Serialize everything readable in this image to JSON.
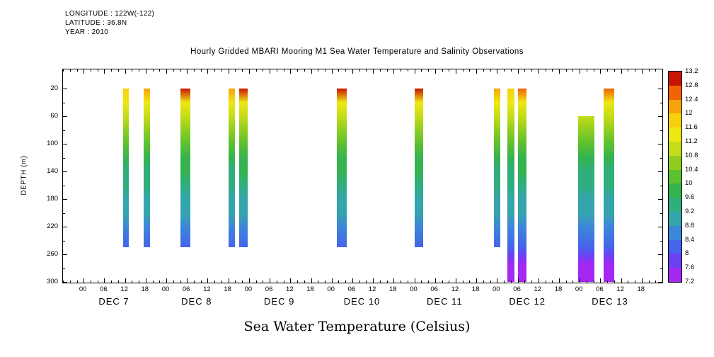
{
  "chart_data": {
    "type": "heatmap",
    "title": "Hourly Gridded MBARI Mooring M1 Sea Water Temperature and Salinity Observations",
    "xlabel_bottom": "Sea Water Temperature (Celsius)",
    "ylabel": "DEPTH (m)",
    "info": [
      "LONGITUDE : 122W(-122)",
      "LATITUDE : 36.8N",
      "YEAR : 2010"
    ],
    "x_range_hours": [
      -6,
      168
    ],
    "depth_range": [
      -8,
      301
    ],
    "hour_tick_step": 6,
    "minor_tick_step": 2,
    "y_ticks": [
      20,
      60,
      100,
      140,
      180,
      220,
      260,
      300
    ],
    "y_minor_step": 20,
    "day_labels": [
      "DEC 7",
      "DEC 8",
      "DEC 9",
      "DEC 10",
      "DEC 11",
      "DEC 12",
      "DEC 13"
    ],
    "colorbar": {
      "min": 7.2,
      "max": 13.2,
      "step": 0.4,
      "labels_top_to_bottom": [
        "13.2",
        "12.8",
        "12.4",
        "12",
        "11.6",
        "11.2",
        "10.8",
        "10.4",
        "10",
        "9.6",
        "9.2",
        "8.8",
        "8.4",
        "8",
        "7.6",
        "7.2"
      ],
      "colors_bottom_to_top": [
        "#a428f2",
        "#6d40f4",
        "#4663ea",
        "#3d87d9",
        "#35a5ad",
        "#2fae7e",
        "#35b34f",
        "#5cc02f",
        "#8fcd20",
        "#c4dd18",
        "#eee712",
        "#f7d00c",
        "#f8a309",
        "#f26306",
        "#c81502"
      ]
    },
    "bars": [
      {
        "t0": 11.5,
        "t1": 13.2,
        "profile": [
          [
            20,
            11.9
          ],
          [
            40,
            11.3
          ],
          [
            60,
            10.9
          ],
          [
            80,
            10.55
          ],
          [
            100,
            10.2
          ],
          [
            120,
            9.9
          ],
          [
            140,
            9.6
          ],
          [
            160,
            9.3
          ],
          [
            180,
            9.05
          ],
          [
            200,
            8.8
          ],
          [
            220,
            8.5
          ],
          [
            250,
            8.05
          ]
        ]
      },
      {
        "t0": 17.5,
        "t1": 19.2,
        "profile": [
          [
            20,
            12.3
          ],
          [
            40,
            11.4
          ],
          [
            60,
            10.9
          ],
          [
            80,
            10.55
          ],
          [
            100,
            10.2
          ],
          [
            120,
            9.9
          ],
          [
            140,
            9.6
          ],
          [
            160,
            9.3
          ],
          [
            180,
            9.05
          ],
          [
            200,
            8.8
          ],
          [
            220,
            8.5
          ],
          [
            250,
            8.05
          ]
        ]
      },
      {
        "t0": 28.0,
        "t1": 31.0,
        "profile": [
          [
            20,
            12.9
          ],
          [
            40,
            11.6
          ],
          [
            60,
            11.0
          ],
          [
            80,
            10.6
          ],
          [
            100,
            10.25
          ],
          [
            120,
            9.95
          ],
          [
            140,
            9.65
          ],
          [
            160,
            9.35
          ],
          [
            180,
            9.05
          ],
          [
            200,
            8.8
          ],
          [
            220,
            8.5
          ],
          [
            250,
            8.05
          ]
        ]
      },
      {
        "t0": 42.0,
        "t1": 44.0,
        "profile": [
          [
            20,
            12.1
          ],
          [
            40,
            11.4
          ],
          [
            60,
            10.9
          ],
          [
            80,
            10.55
          ],
          [
            100,
            10.2
          ],
          [
            120,
            9.9
          ],
          [
            140,
            9.6
          ],
          [
            160,
            9.3
          ],
          [
            180,
            9.05
          ],
          [
            200,
            8.8
          ],
          [
            220,
            8.5
          ],
          [
            250,
            8.05
          ]
        ]
      },
      {
        "t0": 45.2,
        "t1": 47.7,
        "profile": [
          [
            20,
            12.8
          ],
          [
            40,
            11.6
          ],
          [
            60,
            11.0
          ],
          [
            80,
            10.6
          ],
          [
            100,
            10.25
          ],
          [
            120,
            9.95
          ],
          [
            140,
            9.65
          ],
          [
            160,
            9.35
          ],
          [
            180,
            9.05
          ],
          [
            200,
            8.8
          ],
          [
            220,
            8.5
          ],
          [
            250,
            8.05
          ]
        ]
      },
      {
        "t0": 73.5,
        "t1": 76.3,
        "profile": [
          [
            20,
            12.9
          ],
          [
            40,
            11.6
          ],
          [
            60,
            11.0
          ],
          [
            80,
            10.6
          ],
          [
            100,
            10.25
          ],
          [
            120,
            9.95
          ],
          [
            140,
            9.65
          ],
          [
            160,
            9.35
          ],
          [
            180,
            9.05
          ],
          [
            200,
            8.8
          ],
          [
            220,
            8.5
          ],
          [
            250,
            8.05
          ]
        ]
      },
      {
        "t0": 96.0,
        "t1": 98.5,
        "profile": [
          [
            20,
            12.8
          ],
          [
            40,
            11.6
          ],
          [
            60,
            11.0
          ],
          [
            80,
            10.6
          ],
          [
            100,
            10.25
          ],
          [
            120,
            9.95
          ],
          [
            140,
            9.65
          ],
          [
            160,
            9.35
          ],
          [
            180,
            9.05
          ],
          [
            200,
            8.8
          ],
          [
            220,
            8.5
          ],
          [
            250,
            8.05
          ]
        ]
      },
      {
        "t0": 119.0,
        "t1": 121.0,
        "profile": [
          [
            20,
            12.1
          ],
          [
            40,
            11.4
          ],
          [
            60,
            10.9
          ],
          [
            80,
            10.55
          ],
          [
            100,
            10.2
          ],
          [
            120,
            9.9
          ],
          [
            140,
            9.6
          ],
          [
            160,
            9.3
          ],
          [
            180,
            9.05
          ],
          [
            200,
            8.8
          ],
          [
            220,
            8.5
          ],
          [
            250,
            8.05
          ]
        ]
      },
      {
        "t0": 123.0,
        "t1": 125.0,
        "profile": [
          [
            20,
            12.0
          ],
          [
            40,
            11.4
          ],
          [
            60,
            10.9
          ],
          [
            80,
            10.55
          ],
          [
            100,
            10.2
          ],
          [
            120,
            9.9
          ],
          [
            140,
            9.6
          ],
          [
            160,
            9.3
          ],
          [
            180,
            9.05
          ],
          [
            200,
            8.8
          ],
          [
            220,
            8.5
          ],
          [
            250,
            8.05
          ],
          [
            262,
            7.85
          ],
          [
            275,
            7.6
          ],
          [
            300,
            7.3
          ]
        ]
      },
      {
        "t0": 126.0,
        "t1": 128.5,
        "profile": [
          [
            20,
            12.7
          ],
          [
            40,
            11.6
          ],
          [
            60,
            11.0
          ],
          [
            80,
            10.6
          ],
          [
            100,
            10.25
          ],
          [
            120,
            9.95
          ],
          [
            140,
            9.65
          ],
          [
            160,
            9.35
          ],
          [
            180,
            9.05
          ],
          [
            200,
            8.8
          ],
          [
            220,
            8.5
          ],
          [
            250,
            8.05
          ],
          [
            262,
            7.85
          ],
          [
            275,
            7.6
          ],
          [
            300,
            7.3
          ]
        ]
      },
      {
        "t0": 143.5,
        "t1": 148.3,
        "profile": [
          [
            60,
            11.0
          ],
          [
            80,
            10.6
          ],
          [
            100,
            10.2
          ],
          [
            120,
            9.9
          ],
          [
            140,
            9.6
          ],
          [
            160,
            9.3
          ],
          [
            180,
            9.05
          ],
          [
            200,
            8.8
          ],
          [
            220,
            8.5
          ],
          [
            250,
            8.05
          ],
          [
            262,
            7.85
          ],
          [
            275,
            7.6
          ],
          [
            300,
            7.3
          ]
        ]
      },
      {
        "t0": 151.0,
        "t1": 154.0,
        "profile": [
          [
            20,
            12.6
          ],
          [
            40,
            11.5
          ],
          [
            60,
            11.0
          ],
          [
            80,
            10.6
          ],
          [
            100,
            10.2
          ],
          [
            120,
            9.9
          ],
          [
            140,
            9.6
          ],
          [
            160,
            9.3
          ],
          [
            180,
            9.05
          ],
          [
            200,
            8.8
          ],
          [
            220,
            8.5
          ],
          [
            250,
            8.05
          ],
          [
            262,
            7.85
          ],
          [
            275,
            7.6
          ],
          [
            300,
            7.3
          ]
        ]
      }
    ]
  }
}
